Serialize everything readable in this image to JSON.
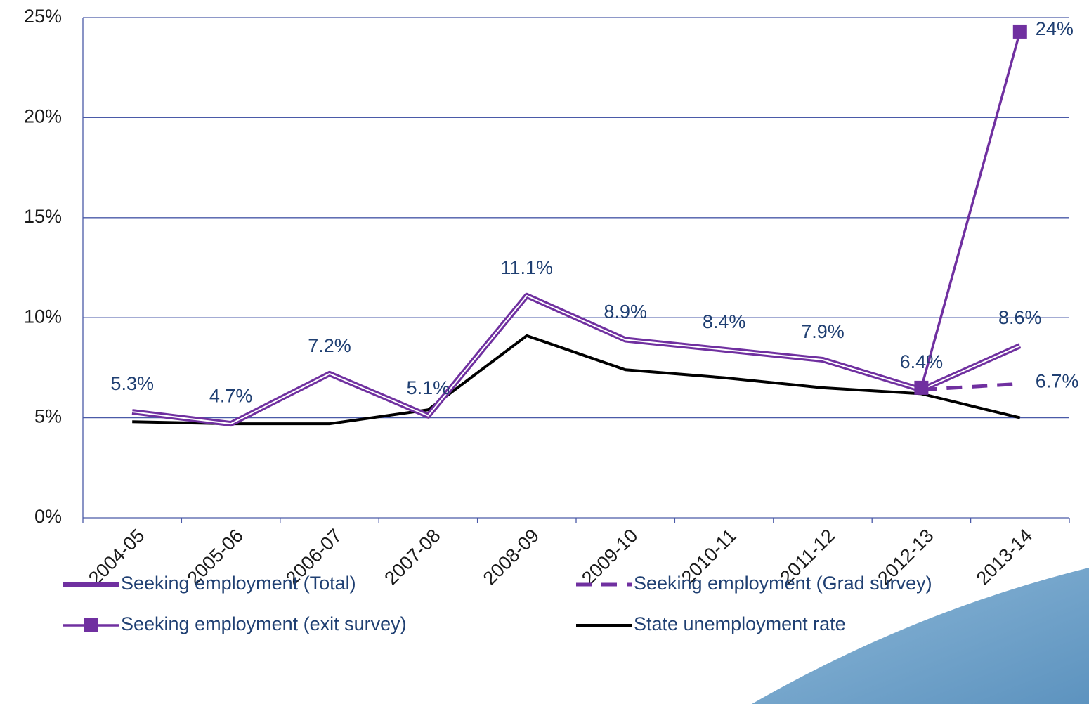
{
  "chart_data": {
    "type": "line",
    "categories": [
      "2004-05",
      "2005-06",
      "2006-07",
      "2007-08",
      "2008-09",
      "2009-10",
      "2010-11",
      "2011-12",
      "2012-13",
      "2013-14"
    ],
    "series": [
      {
        "name": "Seeking employment (Total)",
        "color": "#7030a0",
        "style": "double",
        "values": [
          5.3,
          4.7,
          7.2,
          5.1,
          11.1,
          8.9,
          8.4,
          7.9,
          6.4,
          8.6
        ],
        "value_labels": [
          "5.3%",
          "4.7%",
          "7.2%",
          "5.1%",
          "11.1%",
          "8.9%",
          "8.4%",
          "7.9%",
          "6.4%",
          "8.6%"
        ]
      },
      {
        "name": "Seeking employment (Grad survey)",
        "color": "#7030a0",
        "style": "dashed",
        "values": [
          null,
          null,
          null,
          null,
          null,
          null,
          null,
          null,
          6.4,
          6.7
        ],
        "value_labels": [
          null,
          null,
          null,
          null,
          null,
          null,
          null,
          null,
          null,
          "6.7%"
        ]
      },
      {
        "name": "Seeking employment (exit survey)",
        "color": "#7030a0",
        "style": "square-markers",
        "values": [
          null,
          null,
          null,
          null,
          null,
          null,
          null,
          null,
          6.5,
          24.3
        ],
        "value_labels": [
          null,
          null,
          null,
          null,
          null,
          null,
          null,
          null,
          null,
          "24%"
        ]
      },
      {
        "name": "State unemployment rate",
        "color": "#000000",
        "style": "solid",
        "values": [
          4.8,
          4.7,
          4.7,
          5.4,
          9.1,
          7.4,
          7.0,
          6.5,
          6.2,
          5.0
        ]
      }
    ],
    "ylim": [
      0,
      25
    ],
    "yticks": [
      {
        "value": 0,
        "label": "0%"
      },
      {
        "value": 5,
        "label": "5%"
      },
      {
        "value": 10,
        "label": "10%"
      },
      {
        "value": 15,
        "label": "15%"
      },
      {
        "value": 20,
        "label": "20%"
      },
      {
        "value": 25,
        "label": "25%"
      }
    ],
    "grid": true,
    "legend": "bottom"
  }
}
